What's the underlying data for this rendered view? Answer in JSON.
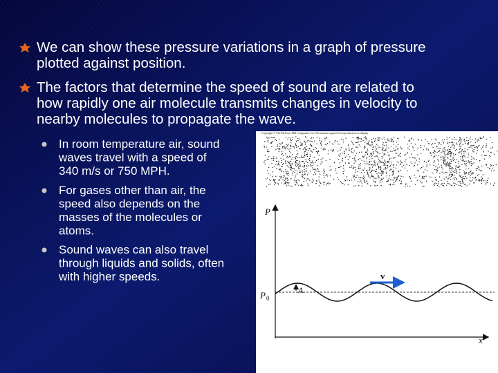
{
  "slide": {
    "bullets": [
      {
        "lines": [
          "We can show these pressure variations in a graph of pressure",
          "plotted against position."
        ]
      },
      {
        "lines": [
          "The factors that determine the speed of sound are related to",
          "how rapidly one air molecule transmits changes in velocity to",
          "nearby molecules to propagate the wave."
        ]
      }
    ],
    "sub_bullets": [
      {
        "lines": [
          "In room temperature air, sound",
          "waves travel  with a speed of",
          "340 m/s or 750 MPH."
        ]
      },
      {
        "lines": [
          "For gases other than air, the",
          "speed also depends on the",
          "masses of the molecules or",
          "atoms."
        ]
      },
      {
        "lines": [
          "Sound waves can also travel",
          "through liquids and solids, often",
          "with higher speeds."
        ]
      }
    ],
    "figure": {
      "copyright": "Copyright © The McGraw-Hill Companies, Inc. Permission required for reproduction or display.",
      "y_axis_label": "P",
      "baseline_label": "P",
      "baseline_subscript": "0",
      "amplitude_label": "A",
      "velocity_label": "v",
      "x_axis_label": "x"
    }
  }
}
